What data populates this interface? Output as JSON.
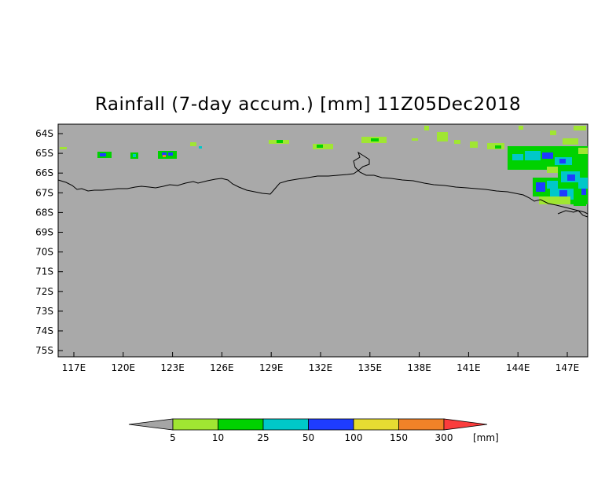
{
  "title": "Rainfall (7-day accum.) [mm] 11Z05Dec2018",
  "lat_labels": [
    "64S",
    "65S",
    "66S",
    "67S",
    "68S",
    "69S",
    "70S",
    "71S",
    "72S",
    "73S",
    "74S",
    "75S"
  ],
  "lon_labels": [
    "117E",
    "120E",
    "123E",
    "126E",
    "129E",
    "132E",
    "135E",
    "138E",
    "141E",
    "144E",
    "147E"
  ],
  "colorbar": {
    "unit": "[mm]",
    "labels": [
      "5",
      "10",
      "25",
      "50",
      "100",
      "150",
      "300"
    ],
    "colors": [
      "#a5a5a5",
      "#a0e632",
      "#00d200",
      "#00c8c8",
      "#1e3cff",
      "#e6dc32",
      "#f08228",
      "#fa3c3c"
    ]
  },
  "colors": {
    "land": "#a9a9a9",
    "coast": "#000000"
  }
}
